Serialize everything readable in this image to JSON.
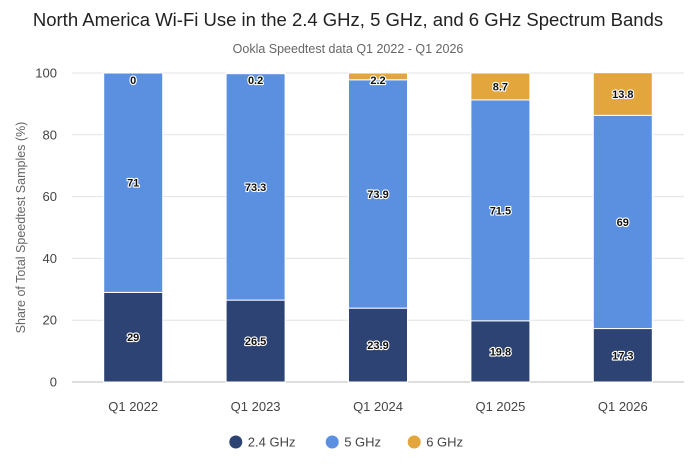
{
  "chart_data": {
    "type": "bar",
    "stacked": true,
    "title": "North America Wi-Fi Use in the 2.4 GHz, 5 GHz, and 6 GHz Spectrum Bands",
    "subtitle": "Ookla Speedtest data Q1 2022 - Q1 2026",
    "xlabel": "",
    "ylabel": "Share of Total Speedtest Samples (%)",
    "ylim": [
      0,
      100
    ],
    "yticks": [
      0,
      20,
      40,
      60,
      80,
      100
    ],
    "categories": [
      "Q1 2022",
      "Q1 2023",
      "Q1 2024",
      "Q1 2025",
      "Q1 2026"
    ],
    "series": [
      {
        "name": "2.4 GHz",
        "color": "#2d4373",
        "values": [
          29,
          26.5,
          23.9,
          19.8,
          17.3
        ]
      },
      {
        "name": "5 GHz",
        "color": "#5b8fdf",
        "values": [
          71,
          73.3,
          73.9,
          71.5,
          69
        ]
      },
      {
        "name": "6 GHz",
        "color": "#e2a63c",
        "values": [
          0,
          0.2,
          2.2,
          8.7,
          13.8
        ]
      }
    ],
    "data_labels": [
      [
        "29",
        "26.5",
        "23.9",
        "19.8",
        "17.3"
      ],
      [
        "71",
        "73.3",
        "73.9",
        "71.5",
        "69"
      ],
      [
        "0",
        "0.2",
        "2.2",
        "8.7",
        "13.8"
      ]
    ],
    "grid": true,
    "legend": "bottom"
  }
}
